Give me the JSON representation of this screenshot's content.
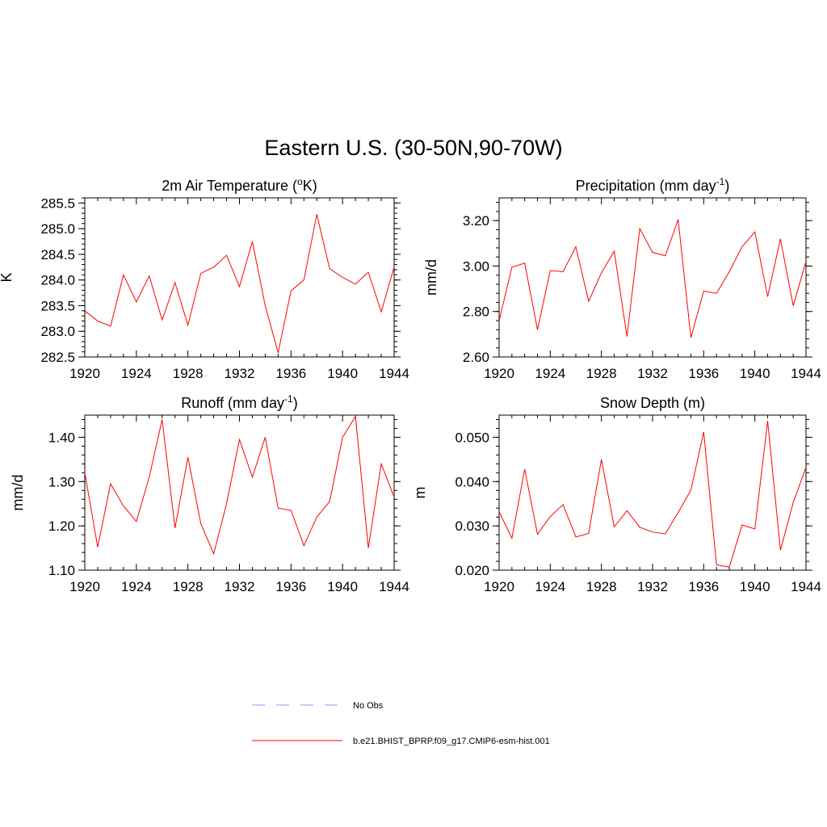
{
  "title": "Eastern U.S. (30-50N,90-70W)",
  "colors": {
    "model": "#ff0000",
    "obs": "#9999ff"
  },
  "legend": [
    {
      "label": "No Obs",
      "style": "dashed",
      "color": "#9999ff"
    },
    {
      "label": "b.e21.BHIST_BPRP.f09_g17.CMIP6-esm-hist.001",
      "style": "solid",
      "color": "#ff0000"
    }
  ],
  "chart_data": [
    {
      "type": "line",
      "title_main": "2m Air Temperature (",
      "title_sup": "o",
      "title_tail": "K)",
      "ylabel": "K",
      "xlim": [
        1920,
        1944
      ],
      "ylim": [
        282.5,
        285.6
      ],
      "xticks": [
        1920,
        1924,
        1928,
        1932,
        1936,
        1940,
        1944
      ],
      "yticks": [
        282.5,
        283.0,
        283.5,
        284.0,
        284.5,
        285.0,
        285.5
      ],
      "ytick_labels": [
        "282.5",
        "283.0",
        "283.5",
        "284.0",
        "284.5",
        "285.0",
        "285.5"
      ],
      "yminor": 0.1,
      "x": [
        1920,
        1921,
        1922,
        1923,
        1924,
        1925,
        1926,
        1927,
        1928,
        1929,
        1930,
        1931,
        1932,
        1933,
        1934,
        1935,
        1936,
        1937,
        1938,
        1939,
        1940,
        1941,
        1942,
        1943,
        1944
      ],
      "series": [
        {
          "values": [
            283.4,
            283.2,
            283.1,
            284.1,
            283.57,
            284.08,
            283.22,
            283.95,
            283.12,
            284.13,
            284.25,
            284.48,
            283.87,
            284.75,
            283.5,
            282.58,
            283.79,
            284.0,
            285.28,
            284.22,
            284.05,
            283.92,
            284.15,
            283.38,
            284.25
          ]
        }
      ]
    },
    {
      "type": "line",
      "title_main": "Precipitation (mm day",
      "title_sup": "-1",
      "title_tail": ")",
      "ylabel": "mm/d",
      "xlim": [
        1920,
        1944
      ],
      "ylim": [
        2.6,
        3.3
      ],
      "xticks": [
        1920,
        1924,
        1928,
        1932,
        1936,
        1940,
        1944
      ],
      "yticks": [
        2.6,
        2.8,
        3.0,
        3.2
      ],
      "ytick_labels": [
        "2.60",
        "2.80",
        "3.00",
        "3.20"
      ],
      "yminor": 0.04,
      "x": [
        1920,
        1921,
        1922,
        1923,
        1924,
        1925,
        1926,
        1927,
        1928,
        1929,
        1930,
        1931,
        1932,
        1933,
        1934,
        1935,
        1936,
        1937,
        1938,
        1939,
        1940,
        1941,
        1942,
        1943,
        1944
      ],
      "series": [
        {
          "values": [
            2.76,
            2.995,
            3.013,
            2.72,
            2.98,
            2.975,
            3.085,
            2.845,
            2.97,
            3.065,
            2.69,
            3.165,
            3.06,
            3.045,
            3.205,
            2.685,
            2.89,
            2.88,
            2.975,
            3.085,
            3.15,
            2.865,
            3.12,
            2.825,
            3.02
          ]
        }
      ]
    },
    {
      "type": "line",
      "title_main": "Runoff (mm day",
      "title_sup": "-1",
      "title_tail": ")",
      "ylabel": "mm/d",
      "xlim": [
        1920,
        1944
      ],
      "ylim": [
        1.1,
        1.45
      ],
      "xticks": [
        1920,
        1924,
        1928,
        1932,
        1936,
        1940,
        1944
      ],
      "yticks": [
        1.1,
        1.2,
        1.3,
        1.4
      ],
      "ytick_labels": [
        "1.10",
        "1.20",
        "1.30",
        "1.40"
      ],
      "yminor": 0.02,
      "x": [
        1920,
        1921,
        1922,
        1923,
        1924,
        1925,
        1926,
        1927,
        1928,
        1929,
        1930,
        1931,
        1932,
        1933,
        1934,
        1935,
        1936,
        1937,
        1938,
        1939,
        1940,
        1941,
        1942,
        1943,
        1944
      ],
      "series": [
        {
          "values": [
            1.32,
            1.152,
            1.295,
            1.245,
            1.21,
            1.31,
            1.44,
            1.195,
            1.355,
            1.205,
            1.137,
            1.25,
            1.395,
            1.31,
            1.4,
            1.24,
            1.235,
            1.155,
            1.22,
            1.255,
            1.4,
            1.447,
            1.15,
            1.34,
            1.265
          ]
        }
      ]
    },
    {
      "type": "line",
      "title_main": "Snow Depth (m)",
      "title_sup": "",
      "title_tail": "",
      "ylabel": "m",
      "xlim": [
        1920,
        1944
      ],
      "ylim": [
        0.02,
        0.055
      ],
      "xticks": [
        1920,
        1924,
        1928,
        1932,
        1936,
        1940,
        1944
      ],
      "yticks": [
        0.02,
        0.03,
        0.04,
        0.05
      ],
      "ytick_labels": [
        "0.020",
        "0.030",
        "0.040",
        "0.050"
      ],
      "yminor": 0.002,
      "x": [
        1920,
        1921,
        1922,
        1923,
        1924,
        1925,
        1926,
        1927,
        1928,
        1929,
        1930,
        1931,
        1932,
        1933,
        1934,
        1935,
        1936,
        1937,
        1938,
        1939,
        1940,
        1941,
        1942,
        1943,
        1944
      ],
      "series": [
        {
          "values": [
            0.0332,
            0.0272,
            0.0428,
            0.0281,
            0.0321,
            0.0348,
            0.0275,
            0.0283,
            0.045,
            0.0298,
            0.0334,
            0.0297,
            0.0286,
            0.0282,
            0.033,
            0.0381,
            0.0512,
            0.0212,
            0.0207,
            0.0302,
            0.0293,
            0.0537,
            0.0245,
            0.0353,
            0.0432
          ]
        }
      ]
    }
  ]
}
